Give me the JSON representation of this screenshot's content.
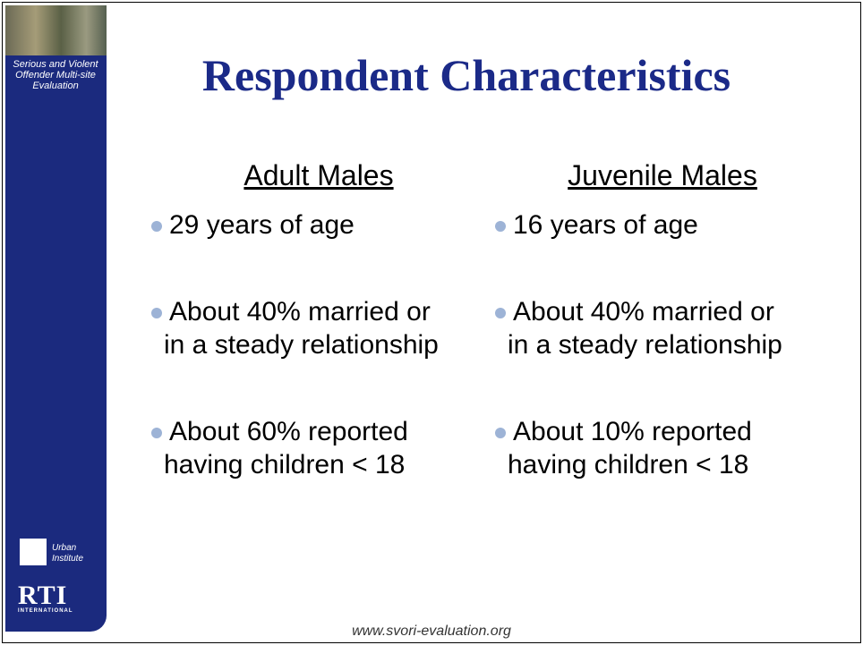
{
  "sidebar": {
    "project": "Serious and Violent Offender Multi-site Evaluation",
    "logos": [
      "Urban Institute",
      "RTI",
      "INTERNATIONAL"
    ]
  },
  "title": "Respondent Characteristics",
  "columns": [
    {
      "heading": "Adult Males",
      "bullets": [
        [
          "29 years of age"
        ],
        [
          "About 40% married or",
          "in a steady relationship"
        ],
        [
          "About 60% reported",
          "having children < 18"
        ]
      ]
    },
    {
      "heading": "Juvenile Males",
      "bullets": [
        [
          "16 years of age"
        ],
        [
          "About 40% married or",
          "in a steady relationship"
        ],
        [
          "About 10% reported",
          "having children < 18"
        ]
      ]
    }
  ],
  "footer": "www.svori-evaluation.org"
}
